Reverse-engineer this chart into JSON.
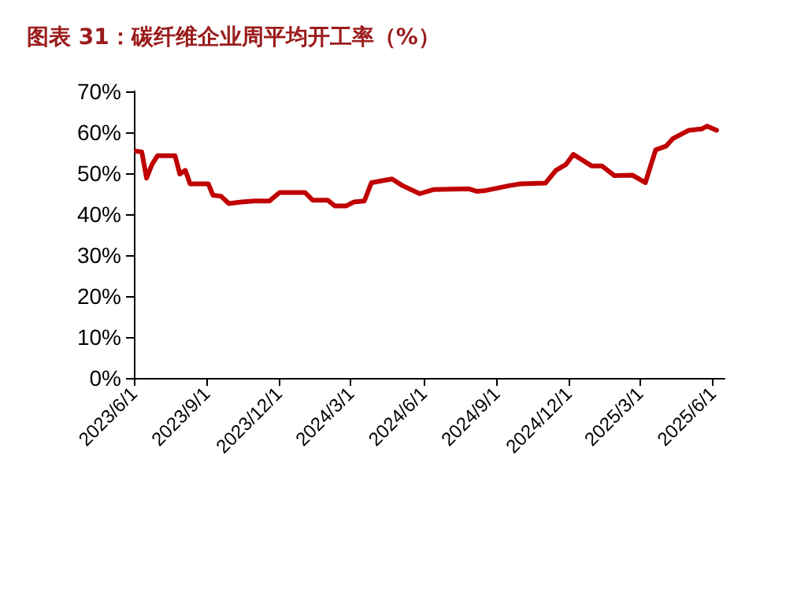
{
  "chart_data": {
    "type": "line",
    "title": "图表 31：碳纤维企业周平均开工率（%）",
    "x": [
      "2023-06-04",
      "2023-06-11",
      "2023-06-17",
      "2023-06-24",
      "2023-07-01",
      "2023-07-23",
      "2023-07-29",
      "2023-08-05",
      "2023-08-11",
      "2023-09-03",
      "2023-09-09",
      "2023-09-19",
      "2023-09-29",
      "2023-10-15",
      "2023-10-31",
      "2023-11-19",
      "2023-12-02",
      "2024-01-03",
      "2024-01-13",
      "2024-02-01",
      "2024-02-10",
      "2024-02-24",
      "2024-03-05",
      "2024-03-18",
      "2024-03-27",
      "2024-04-22",
      "2024-05-05",
      "2024-05-27",
      "2024-06-13",
      "2024-07-28",
      "2024-08-07",
      "2024-08-16",
      "2024-09-18",
      "2024-10-01",
      "2024-11-02",
      "2024-11-15",
      "2024-11-28",
      "2024-12-07",
      "2024-12-30",
      "2025-01-12",
      "2025-01-28",
      "2025-02-20",
      "2025-03-08",
      "2025-03-21",
      "2025-04-03",
      "2025-04-12",
      "2025-05-02",
      "2025-05-18",
      "2025-05-25",
      "2025-06-06"
    ],
    "series": [
      {
        "color": "#c00000",
        "values": [
          55.4,
          55.2,
          48.8,
          52.2,
          54.3,
          54.3,
          49.8,
          50.7,
          47.4,
          47.4,
          44.6,
          44.4,
          42.6,
          43.0,
          43.2,
          43.2,
          45.3,
          45.3,
          43.4,
          43.4,
          42.0,
          42.0,
          43.0,
          43.2,
          47.7,
          48.6,
          47.0,
          45.0,
          46.0,
          46.2,
          45.6,
          45.7,
          47.0,
          47.4,
          47.6,
          50.7,
          52.2,
          54.6,
          51.8,
          51.8,
          49.4,
          49.5,
          47.7,
          55.7,
          56.6,
          58.5,
          60.5,
          60.8,
          61.5,
          60.5
        ]
      }
    ],
    "xlim": [
      "2023-06-01",
      "2025-06-16"
    ],
    "xticks": [
      {
        "value": "2023-06-01",
        "label": "2023/6/1"
      },
      {
        "value": "2023-09-01",
        "label": "2023/9/1"
      },
      {
        "value": "2023-12-01",
        "label": "2023/12/1"
      },
      {
        "value": "2024-03-01",
        "label": "2024/3/1"
      },
      {
        "value": "2024-06-01",
        "label": "2024/6/1"
      },
      {
        "value": "2024-09-01",
        "label": "2024/9/1"
      },
      {
        "value": "2024-12-01",
        "label": "2024/12/1"
      },
      {
        "value": "2025-03-01",
        "label": "2025/3/1"
      },
      {
        "value": "2025-06-01",
        "label": "2025/6/1"
      }
    ],
    "ylim": [
      0,
      70
    ],
    "yticks": [
      {
        "value": 0,
        "label": "0%"
      },
      {
        "value": 10,
        "label": "10%"
      },
      {
        "value": 20,
        "label": "20%"
      },
      {
        "value": 30,
        "label": "30%"
      },
      {
        "value": 40,
        "label": "40%"
      },
      {
        "value": 50,
        "label": "50%"
      },
      {
        "value": 60,
        "label": "60%"
      },
      {
        "value": 70,
        "label": "70%"
      }
    ],
    "grid": false,
    "marker": "none",
    "line_style": "solid"
  }
}
